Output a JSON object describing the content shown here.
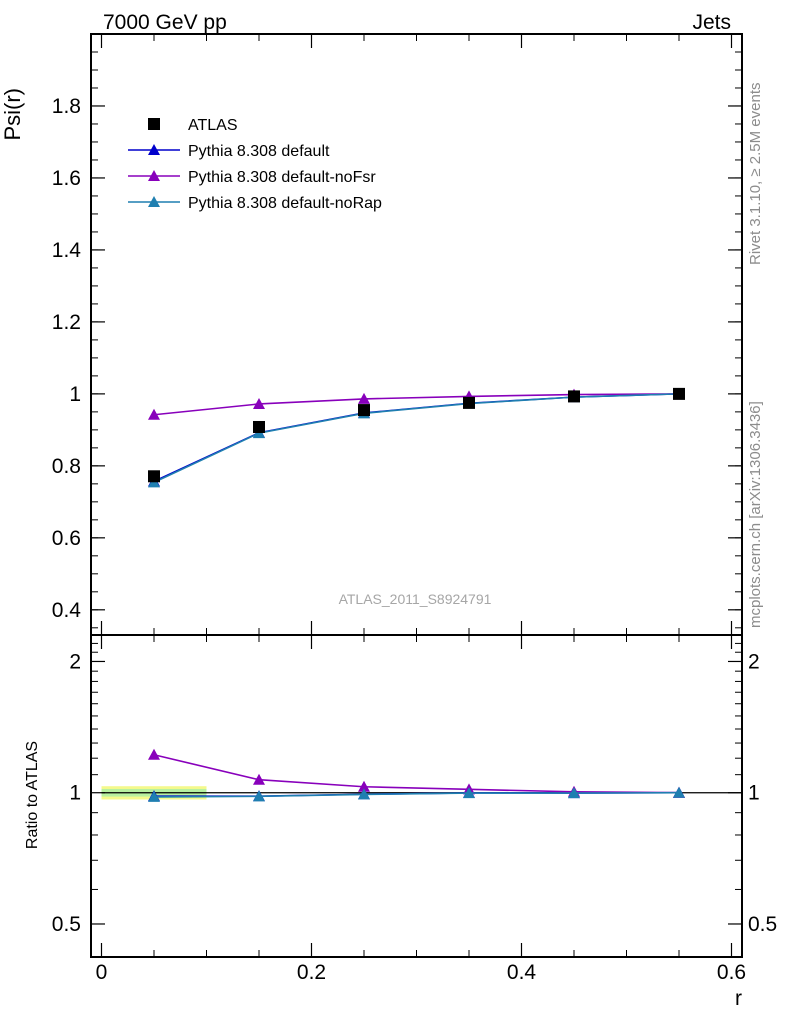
{
  "header": {
    "left": "7000 GeV pp",
    "right": "Jets"
  },
  "side": {
    "rivet": "Rivet 3.1.10, ≥ 2.5M events",
    "mcplots": "mcplots.cern.ch [arXiv:1306.3436]"
  },
  "watermark": "ATLAS_2011_S8924791",
  "legend": [
    "ATLAS",
    "Pythia 8.308 default",
    "Pythia 8.308 default-noFsr",
    "Pythia 8.308 default-noRap"
  ],
  "colors": {
    "data": "#000000",
    "default": "#0000cc",
    "noFsr": "#8800bb",
    "noRap": "#1f7fb0",
    "band_outer": "#f4f98c",
    "band_inner": "#b7f0a0"
  },
  "chart_data": [
    {
      "type": "line",
      "panel": "main",
      "ylabel": "Psi(r)",
      "xlim": [
        -0.01,
        0.61
      ],
      "ylim": [
        0.33,
        2.0
      ],
      "yticks": [
        "0.4",
        "0.6",
        "0.8",
        "1",
        "1.2",
        "1.4",
        "1.6",
        "1.8"
      ],
      "x": [
        0.05,
        0.15,
        0.25,
        0.35,
        0.45,
        0.55
      ],
      "series": [
        {
          "name": "ATLAS",
          "values": [
            0.771,
            0.908,
            0.955,
            0.975,
            0.993,
            1.0
          ]
        },
        {
          "name": "Pythia 8.308 default",
          "values": [
            0.757,
            0.892,
            0.947,
            0.974,
            0.991,
            1.0
          ]
        },
        {
          "name": "Pythia 8.308 default-noFsr",
          "values": [
            0.942,
            0.972,
            0.986,
            0.993,
            0.998,
            1.0
          ]
        },
        {
          "name": "Pythia 8.308 default-noRap",
          "values": [
            0.754,
            0.891,
            0.946,
            0.973,
            0.991,
            1.0
          ]
        }
      ]
    },
    {
      "type": "line",
      "panel": "ratio",
      "ylabel": "Ratio to ATLAS",
      "xlabel": "r",
      "ylim": [
        0.42,
        2.3
      ],
      "log_y": true,
      "yticks": [
        "0.5",
        "1",
        "2"
      ],
      "xticks": [
        "0",
        "0.2",
        "0.4",
        "0.6"
      ],
      "x": [
        0.05,
        0.15,
        0.25,
        0.35,
        0.45,
        0.55
      ],
      "series": [
        {
          "name": "Pythia 8.308 default",
          "values": [
            0.982,
            0.982,
            0.992,
            0.999,
            0.998,
            1.0
          ]
        },
        {
          "name": "Pythia 8.308 default-noFsr",
          "values": [
            1.222,
            1.071,
            1.032,
            1.018,
            1.005,
            1.0
          ]
        },
        {
          "name": "Pythia 8.308 default-noRap",
          "values": [
            0.978,
            0.981,
            0.991,
            0.998,
            0.998,
            1.0
          ]
        }
      ],
      "band": {
        "x": [
          0.0,
          0.1
        ],
        "outer": [
          0.965,
          1.035
        ],
        "inner": [
          0.98,
          1.02
        ]
      }
    }
  ]
}
